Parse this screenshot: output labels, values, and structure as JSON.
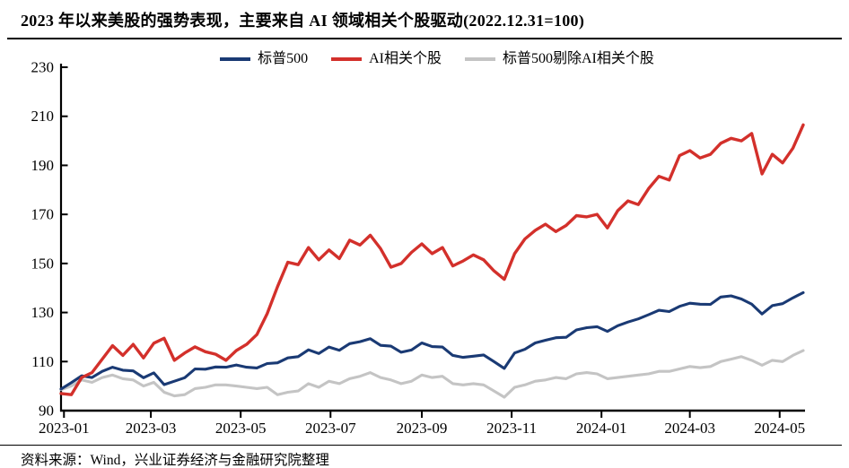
{
  "title": "2023 年以来美股的强势表现，主要来自 AI 领域相关个股驱动(2022.12.31=100)",
  "source_note": "资料来源：Wind，兴业证券经济与金融研究院整理",
  "colors": {
    "axis": "#000000",
    "sp500": "#1A3A74",
    "ai_stocks": "#D3302B",
    "sp500_ex_ai": "#C4C4C4"
  },
  "chart_data": {
    "type": "line",
    "title": "2023 年以来美股的强势表现，主要来自 AI 领域相关个股驱动(2022.12.31=100)",
    "index_base": "2022.12.31=100",
    "grid": false,
    "legend_position": "top",
    "ylim": [
      90,
      230
    ],
    "yticks": [
      90,
      110,
      130,
      150,
      170,
      190,
      210,
      230
    ],
    "xtick_labels": [
      "2023-01",
      "2023-03",
      "2023-05",
      "2023-07",
      "2023-09",
      "2023-11",
      "2024-01",
      "2024-03",
      "2024-05"
    ],
    "x": [
      "2022-12-30",
      "2023-01-06",
      "2023-01-13",
      "2023-01-20",
      "2023-01-27",
      "2023-02-03",
      "2023-02-10",
      "2023-02-17",
      "2023-02-24",
      "2023-03-03",
      "2023-03-10",
      "2023-03-17",
      "2023-03-24",
      "2023-03-31",
      "2023-04-07",
      "2023-04-14",
      "2023-04-21",
      "2023-04-28",
      "2023-05-05",
      "2023-05-12",
      "2023-05-19",
      "2023-05-26",
      "2023-06-02",
      "2023-06-09",
      "2023-06-16",
      "2023-06-23",
      "2023-06-30",
      "2023-07-07",
      "2023-07-14",
      "2023-07-21",
      "2023-07-28",
      "2023-08-04",
      "2023-08-11",
      "2023-08-18",
      "2023-08-25",
      "2023-09-01",
      "2023-09-08",
      "2023-09-15",
      "2023-09-22",
      "2023-09-29",
      "2023-10-06",
      "2023-10-13",
      "2023-10-20",
      "2023-10-27",
      "2023-11-03",
      "2023-11-10",
      "2023-11-17",
      "2023-11-24",
      "2023-12-01",
      "2023-12-08",
      "2023-12-15",
      "2023-12-22",
      "2023-12-29",
      "2024-01-05",
      "2024-01-12",
      "2024-01-19",
      "2024-01-26",
      "2024-02-02",
      "2024-02-09",
      "2024-02-16",
      "2024-02-23",
      "2024-03-01",
      "2024-03-08",
      "2024-03-15",
      "2024-03-22",
      "2024-03-29",
      "2024-04-05",
      "2024-04-12",
      "2024-04-19",
      "2024-04-26",
      "2024-05-03",
      "2024-05-10",
      "2024-05-17"
    ],
    "series": [
      {
        "name": "标普500",
        "color": "#1A3A74",
        "values": [
          98.8,
          101.4,
          104.2,
          103.5,
          106.0,
          107.7,
          106.5,
          106.2,
          103.4,
          105.4,
          100.6,
          102.0,
          103.4,
          107.0,
          106.9,
          107.8,
          107.7,
          108.6,
          107.7,
          107.4,
          109.2,
          109.5,
          111.5,
          112.0,
          114.8,
          113.3,
          115.9,
          114.6,
          117.3,
          118.1,
          119.3,
          116.6,
          116.3,
          113.8,
          114.7,
          117.6,
          116.1,
          115.9,
          112.5,
          111.7,
          112.2,
          112.7,
          110.0,
          107.2,
          113.5,
          115.0,
          117.6,
          118.7,
          119.7,
          119.9,
          122.9,
          123.8,
          124.2,
          122.3,
          124.6,
          126.1,
          127.4,
          129.1,
          130.9,
          130.4,
          132.5,
          133.8,
          133.4,
          133.3,
          136.3,
          136.8,
          135.5,
          133.4,
          129.4,
          132.8,
          133.6,
          136.0,
          138.1
        ]
      },
      {
        "name": "AI相关个股",
        "color": "#D3302B",
        "values": [
          97.0,
          96.5,
          103.5,
          105.5,
          111.0,
          116.5,
          112.5,
          117.0,
          111.5,
          117.5,
          119.5,
          110.5,
          113.5,
          116.0,
          114.0,
          113.0,
          110.5,
          114.5,
          117.0,
          121.0,
          129.5,
          140.5,
          150.5,
          149.5,
          156.5,
          151.5,
          155.5,
          152.0,
          159.5,
          157.5,
          161.5,
          156.0,
          148.5,
          150.0,
          154.5,
          158.0,
          154.0,
          156.5,
          149.0,
          151.0,
          153.5,
          151.5,
          147.0,
          143.5,
          154.0,
          160.0,
          163.5,
          166.0,
          163.0,
          165.5,
          169.5,
          169.0,
          170.0,
          164.5,
          171.5,
          175.5,
          174.0,
          180.5,
          185.5,
          184.0,
          194.0,
          196.0,
          193.0,
          194.5,
          199.0,
          201.0,
          200.0,
          203.0,
          186.5,
          194.5,
          191.0,
          197.0,
          206.5
        ]
      },
      {
        "name": "标普500剔除AI相关个股",
        "color": "#C4C4C4",
        "values": [
          98.5,
          100.0,
          102.5,
          101.5,
          103.5,
          104.5,
          103.0,
          102.5,
          100.0,
          101.5,
          97.5,
          96.0,
          96.5,
          99.0,
          99.5,
          100.5,
          100.5,
          100.0,
          99.5,
          99.0,
          99.5,
          96.5,
          97.5,
          98.0,
          101.0,
          99.5,
          102.0,
          101.0,
          103.0,
          104.0,
          105.5,
          103.5,
          102.5,
          101.0,
          102.0,
          104.5,
          103.5,
          104.0,
          101.0,
          100.5,
          101.0,
          100.5,
          98.0,
          95.5,
          99.5,
          100.5,
          102.0,
          102.5,
          103.5,
          103.0,
          105.0,
          105.5,
          105.0,
          103.0,
          103.5,
          104.0,
          104.5,
          105.0,
          106.0,
          106.0,
          107.0,
          108.0,
          107.5,
          108.0,
          110.0,
          111.0,
          112.0,
          110.5,
          108.5,
          110.5,
          110.0,
          112.5,
          114.5
        ]
      }
    ]
  }
}
